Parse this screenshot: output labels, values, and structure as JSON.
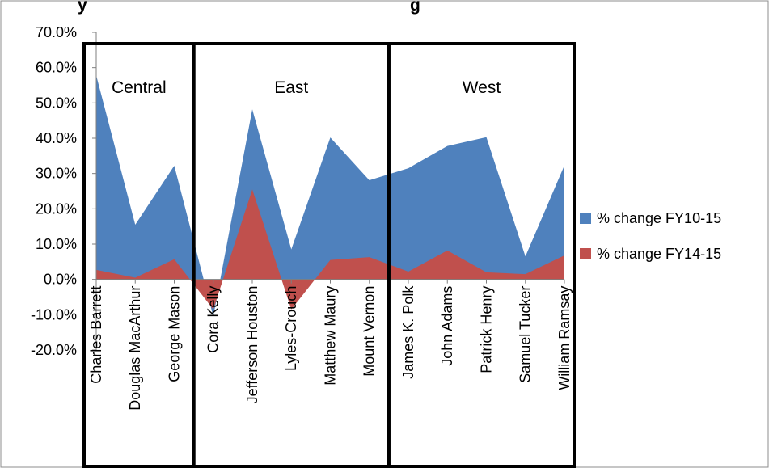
{
  "chart_data": {
    "type": "area",
    "title_fragment_left": "y",
    "title_fragment_right": "g",
    "categories": [
      "Charles Barrett",
      "Douglas MacArthur",
      "George Mason",
      "Cora Kelly",
      "Jefferson Houston",
      "Lyles-Crouch",
      "Matthew Maury",
      "Mount Vernon",
      "James K. Polk",
      "John Adams",
      "Patrick Henry",
      "Samuel Tucker",
      "William Ramsay"
    ],
    "series": [
      {
        "name": "% change FY10-15",
        "color": "#4f81bd",
        "values": [
          0.578,
          0.155,
          0.322,
          -0.105,
          0.482,
          0.085,
          0.402,
          0.281,
          0.315,
          0.378,
          0.403,
          0.065,
          0.323
        ]
      },
      {
        "name": "% change FY14-15",
        "color": "#c0504d",
        "values": [
          0.027,
          0.005,
          0.057,
          -0.085,
          0.255,
          -0.085,
          0.055,
          0.063,
          0.022,
          0.082,
          0.02,
          0.015,
          0.068
        ]
      }
    ],
    "ylim": [
      -0.2,
      0.7
    ],
    "yticks": [
      "70.0%",
      "60.0%",
      "50.0%",
      "40.0%",
      "30.0%",
      "20.0%",
      "10.0%",
      "0.0%",
      "-10.0%",
      "-20.0%"
    ],
    "ytick_values": [
      0.7,
      0.6,
      0.5,
      0.4,
      0.3,
      0.2,
      0.1,
      0.0,
      -0.1,
      -0.2
    ],
    "groups": [
      {
        "label": "Central",
        "first": 0,
        "last": 2
      },
      {
        "label": "East",
        "first": 3,
        "last": 7
      },
      {
        "label": "West",
        "first": 8,
        "last": 12
      }
    ],
    "legend_position": "right",
    "grid": false
  }
}
